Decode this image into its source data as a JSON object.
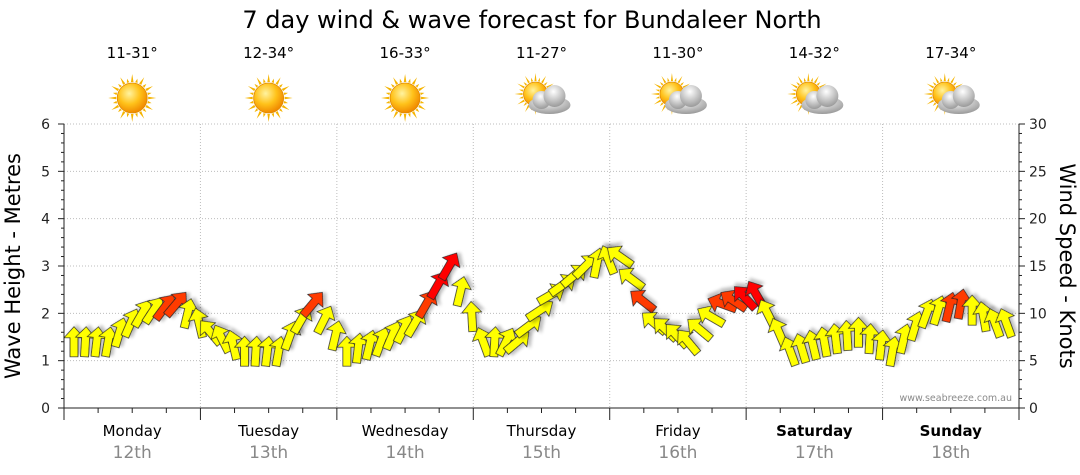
{
  "chart_data": {
    "type": "line",
    "title": "7 day wind & wave forecast for Bundaleer North",
    "ylabel_left": "Wave Height - Metres",
    "ylabel_right": "Wind Speed - Knots",
    "ylim_left": [
      0,
      6
    ],
    "ylim_right": [
      0,
      30
    ],
    "yticks_left": [
      0,
      1,
      2,
      3,
      4,
      5,
      6
    ],
    "yticks_right": [
      0,
      5,
      10,
      15,
      20,
      25,
      30
    ],
    "grid": true,
    "days": [
      {
        "name": "Monday",
        "date": "12th",
        "temps": "11-31°",
        "weather": "sunny",
        "bold": false
      },
      {
        "name": "Tuesday",
        "date": "13th",
        "temps": "12-34°",
        "weather": "sunny",
        "bold": false
      },
      {
        "name": "Wednesday",
        "date": "14th",
        "temps": "16-33°",
        "weather": "sunny",
        "bold": false
      },
      {
        "name": "Thursday",
        "date": "15th",
        "temps": "11-27°",
        "weather": "partly-cloudy",
        "bold": false
      },
      {
        "name": "Friday",
        "date": "16th",
        "temps": "11-30°",
        "weather": "partly-cloudy",
        "bold": false
      },
      {
        "name": "Saturday",
        "date": "17th",
        "temps": "14-32°",
        "weather": "partly-cloudy",
        "bold": true
      },
      {
        "name": "Sunday",
        "date": "18th",
        "temps": "17-34°",
        "weather": "partly-cloudy",
        "bold": true
      }
    ],
    "series": [
      {
        "name": "Wind Speed (knots)",
        "hours": [
          0,
          6,
          12,
          18,
          24,
          30,
          36,
          42,
          48,
          54,
          60,
          66,
          72,
          78,
          84,
          90,
          96,
          102,
          108,
          114,
          120,
          126,
          132,
          138,
          144,
          150,
          156,
          162
        ],
        "values": [
          7,
          7,
          10,
          11,
          8,
          6,
          6,
          11,
          6,
          7,
          9,
          15,
          7,
          7,
          12,
          15,
          16,
          9,
          7,
          11,
          12,
          6,
          7,
          8,
          6,
          10,
          11,
          9
        ],
        "directions_deg": [
          90,
          80,
          60,
          50,
          130,
          90,
          80,
          50,
          90,
          70,
          60,
          60,
          110,
          40,
          30,
          45,
          145,
          140,
          130,
          160,
          120,
          110,
          100,
          90,
          80,
          70,
          80,
          110
        ]
      }
    ],
    "wind_color_scale": {
      "calm": "#FFFF00",
      "strong": "#FF0000"
    }
  },
  "credit": "www.seabreeze.com.au"
}
